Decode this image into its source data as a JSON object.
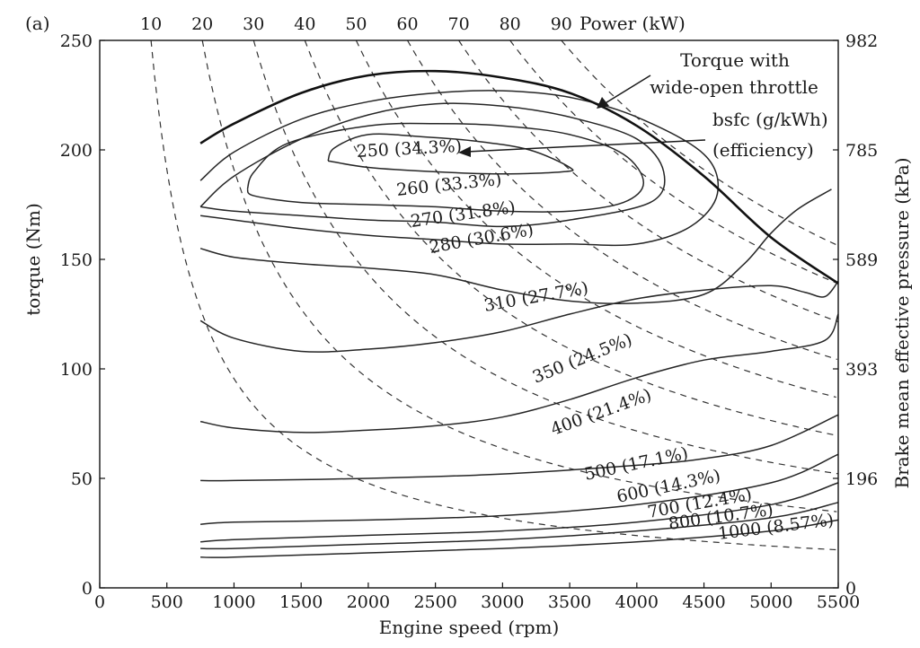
{
  "panel_label": "(a)",
  "chart_data": {
    "type": "line",
    "xlabel": "Engine speed (rpm)",
    "ylabel": "torque (Nm)",
    "y2label": "Brake mean effective pressure (kPa)",
    "top_axis_label": "Power (kW)",
    "xlim": [
      0,
      5500
    ],
    "ylim": [
      0,
      250
    ],
    "x_ticks": [
      0,
      500,
      1000,
      1500,
      2000,
      2500,
      3000,
      3500,
      4000,
      4500,
      5000,
      5500
    ],
    "y_ticks": [
      0,
      50,
      100,
      150,
      200,
      250
    ],
    "bmep_ticks": [
      {
        "torque": 0,
        "label": "0"
      },
      {
        "torque": 50,
        "label": "196"
      },
      {
        "torque": 100,
        "label": "393"
      },
      {
        "torque": 150,
        "label": "589"
      },
      {
        "torque": 200,
        "label": "785"
      },
      {
        "torque": 250,
        "label": "982"
      }
    ],
    "power_ticks": [
      10,
      20,
      30,
      40,
      50,
      60,
      70,
      80,
      90
    ],
    "grid": false,
    "wot_curve": {
      "name": "Torque with wide-open throttle",
      "x": [
        750,
        1000,
        1500,
        2000,
        2500,
        3000,
        3500,
        4000,
        4500,
        5000,
        5500
      ],
      "y": [
        203,
        212,
        226,
        234,
        236,
        233,
        226,
        211,
        188,
        160,
        139
      ]
    },
    "annotations": [
      {
        "lines": [
          "Torque with",
          "wide-open throttle"
        ]
      },
      {
        "lines": [
          "bsfc (g/kWh)",
          "(efficiency)"
        ]
      }
    ],
    "bsfc_contours": [
      {
        "label": "250 (34.3%)",
        "x": [
          1700,
          1750,
          2000,
          2400,
          2800,
          3200,
          3500,
          3450,
          3000,
          2500,
          2000,
          1700
        ],
        "y": [
          195,
          201,
          207,
          206,
          204,
          200,
          192,
          190,
          189,
          190,
          192,
          195
        ]
      },
      {
        "label": "260 (33.3%)",
        "x": [
          1100,
          1150,
          1400,
          2000,
          2500,
          3000,
          3500,
          3900,
          4050,
          3900,
          3500,
          3000,
          2500,
          2000,
          1500,
          1150,
          1100
        ],
        "y": [
          182,
          190,
          203,
          211,
          212,
          211,
          207,
          198,
          185,
          176,
          172,
          172,
          174,
          175,
          176,
          179,
          182
        ]
      },
      {
        "label": "270 (31.8%)",
        "x": [
          750,
          1000,
          1500,
          2000,
          2500,
          3000,
          3500,
          4000,
          4200,
          4100,
          3500,
          3000,
          2500,
          2000,
          1500,
          1000,
          750
        ],
        "y": [
          174,
          188,
          205,
          216,
          221,
          220,
          215,
          205,
          190,
          176,
          168,
          165,
          167,
          168,
          170,
          172,
          174
        ]
      },
      {
        "label": "280 (30.6%)",
        "x": [
          750,
          1000,
          1500,
          2000,
          2500,
          3000,
          3500,
          4000,
          4400,
          4600,
          4500,
          4000,
          3500,
          3000,
          2500,
          2000,
          1500,
          1000,
          750
        ],
        "y": [
          170,
          168,
          164,
          161,
          159,
          157,
          157,
          157,
          165,
          180,
          198,
          215,
          224,
          227,
          226,
          222,
          214,
          199,
          186
        ]
      },
      {
        "label": "310 (27.7%)",
        "x": [
          750,
          1000,
          1500,
          2000,
          2500,
          3000,
          3500,
          4000,
          4500,
          4800,
          5000,
          5200,
          5450
        ],
        "y": [
          155,
          151,
          148,
          146,
          143,
          136,
          131,
          130,
          134,
          148,
          162,
          173,
          182
        ]
      },
      {
        "label": "350 (24.5%)",
        "x": [
          750,
          1000,
          1500,
          2000,
          2500,
          3000,
          3500,
          4000,
          4500,
          5000,
          5250,
          5400,
          5500
        ],
        "y": [
          122,
          114,
          108,
          109,
          112,
          117,
          125,
          132,
          136,
          138,
          135,
          133,
          140
        ]
      },
      {
        "label": "400 (21.4%)",
        "x": [
          750,
          1000,
          1500,
          2000,
          2500,
          3000,
          3500,
          4000,
          4500,
          5000,
          5400,
          5500
        ],
        "y": [
          76,
          73,
          71,
          72,
          74,
          78,
          86,
          96,
          104,
          108,
          113,
          125
        ]
      },
      {
        "label": "500 (17.1%)",
        "x": [
          750,
          1000,
          2000,
          3000,
          4000,
          4500,
          5000,
          5500
        ],
        "y": [
          49,
          49,
          50,
          52,
          56,
          59,
          65,
          79
        ]
      },
      {
        "label": "600 (14.3%)",
        "x": [
          750,
          1000,
          2000,
          3000,
          4000,
          5000,
          5500
        ],
        "y": [
          29,
          30,
          31,
          33,
          38,
          48,
          61
        ]
      },
      {
        "label": "700 (12.4%)",
        "x": [
          750,
          1000,
          2000,
          3000,
          4000,
          5000,
          5500
        ],
        "y": [
          21,
          22,
          24,
          26,
          30,
          38,
          48
        ]
      },
      {
        "label": "800 (10.7%)",
        "x": [
          750,
          1000,
          2000,
          3000,
          4000,
          5000,
          5500
        ],
        "y": [
          18,
          18,
          20,
          22,
          26,
          32,
          39
        ]
      },
      {
        "label": "1000 (8.57%)",
        "x": [
          750,
          1000,
          2000,
          3000,
          4000,
          5000,
          5500
        ],
        "y": [
          14,
          14,
          16,
          18,
          21,
          26,
          31
        ]
      }
    ]
  }
}
